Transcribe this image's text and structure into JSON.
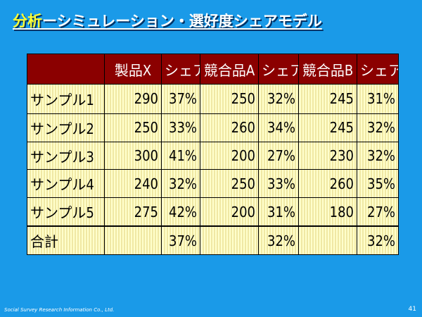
{
  "slide": {
    "title_accent": "分析",
    "title_rest": "ーシミュレーション・選好度シェアモデル",
    "footer": "Social Survey Research Information Co., Ltd.",
    "page_number": "41"
  },
  "table": {
    "headers": [
      "",
      "製品X",
      "シェア",
      "競合品A",
      "シェア",
      "競合品B",
      "シェア"
    ],
    "rows": [
      [
        "サンプル1",
        "290",
        "37%",
        "250",
        "32%",
        "245",
        "31%"
      ],
      [
        "サンプル2",
        "250",
        "33%",
        "260",
        "34%",
        "245",
        "32%"
      ],
      [
        "サンプル3",
        "300",
        "41%",
        "200",
        "27%",
        "230",
        "32%"
      ],
      [
        "サンプル4",
        "240",
        "32%",
        "250",
        "33%",
        "260",
        "35%"
      ],
      [
        "サンプル5",
        "275",
        "42%",
        "200",
        "31%",
        "180",
        "27%"
      ],
      [
        "合計",
        "",
        "37%",
        "",
        "32%",
        "",
        "32%"
      ]
    ]
  },
  "colors": {
    "background": "#1a9ae8",
    "header": "#8b0000",
    "cell": "#ffffcc",
    "title_accent": "#ffff33"
  }
}
